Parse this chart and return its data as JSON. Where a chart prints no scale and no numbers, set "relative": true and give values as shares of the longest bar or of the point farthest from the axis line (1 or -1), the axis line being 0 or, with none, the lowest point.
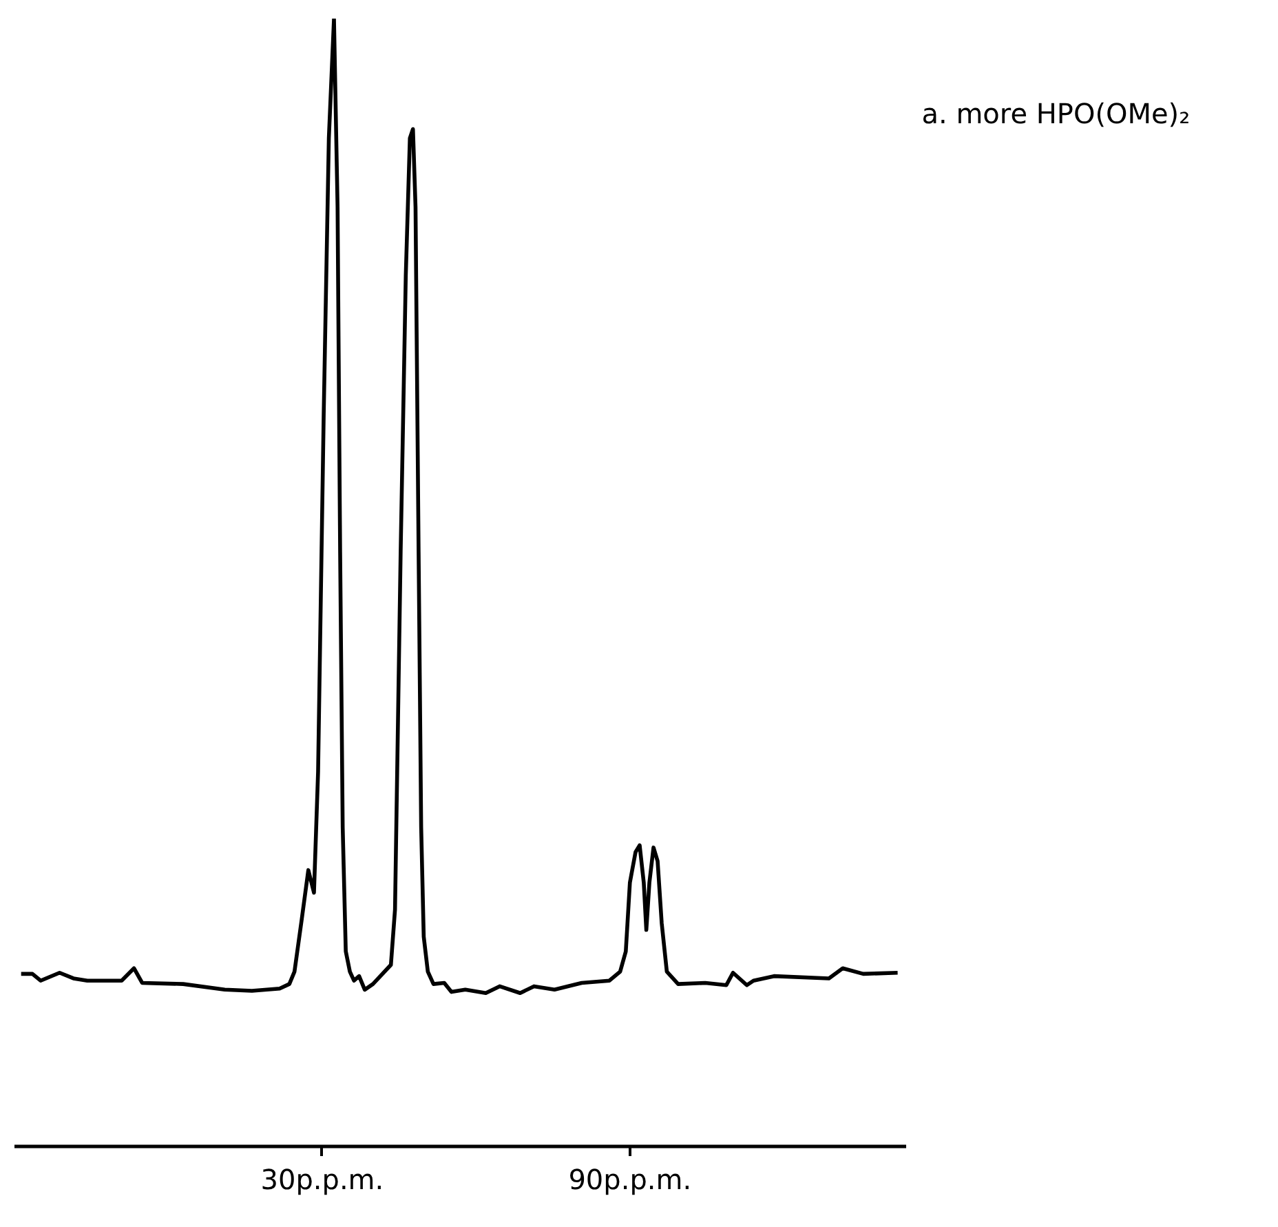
{
  "chart_data": {
    "type": "line",
    "relative": true,
    "xlim": [
      -30,
      144
    ],
    "xticks": [
      {
        "value": 30,
        "label": "30p.p.m."
      },
      {
        "value": 90,
        "label": "90p.p.m."
      }
    ],
    "annotations": [
      "a. more HPO(OMe)₂"
    ],
    "line_style": "solid",
    "series": [
      {
        "color": "#000000",
        "x": [
          -28.7,
          -26.5,
          -24.9,
          -21.2,
          -18.5,
          -15.8,
          -9.1,
          -6.7,
          -5.1,
          2.9,
          11.0,
          16.3,
          21.7,
          23.6,
          24.6,
          26.0,
          27.3,
          28.4,
          29.2,
          30.3,
          31.3,
          32.3,
          33.0,
          33.5,
          34.0,
          34.6,
          35.4,
          36.2,
          37.2,
          38.3,
          39.9,
          43.4,
          44.2,
          45.3,
          46.3,
          47.1,
          47.7,
          48.2,
          48.8,
          49.3,
          49.8,
          50.6,
          51.7,
          53.8,
          55.2,
          57.9,
          61.9,
          64.6,
          68.6,
          71.3,
          75.3,
          80.6,
          86.0,
          88.1,
          89.2,
          90.0,
          91.1,
          91.9,
          92.7,
          93.2,
          93.8,
          94.6,
          95.4,
          96.2,
          97.2,
          99.4,
          104.7,
          108.8,
          110.1,
          112.8,
          114.1,
          118.1,
          128.8,
          131.5,
          135.5,
          142.2
        ],
        "values": [
          0.153,
          0.153,
          0.147,
          0.154,
          0.149,
          0.147,
          0.147,
          0.158,
          0.145,
          0.144,
          0.139,
          0.138,
          0.14,
          0.144,
          0.155,
          0.201,
          0.245,
          0.225,
          0.332,
          0.65,
          0.894,
          1,
          0.833,
          0.527,
          0.283,
          0.173,
          0.155,
          0.147,
          0.151,
          0.139,
          0.144,
          0.161,
          0.21,
          0.527,
          0.772,
          0.894,
          0.902,
          0.833,
          0.527,
          0.283,
          0.186,
          0.155,
          0.144,
          0.145,
          0.137,
          0.139,
          0.136,
          0.142,
          0.136,
          0.142,
          0.139,
          0.145,
          0.147,
          0.155,
          0.173,
          0.234,
          0.261,
          0.267,
          0.234,
          0.192,
          0.234,
          0.265,
          0.253,
          0.198,
          0.155,
          0.144,
          0.145,
          0.143,
          0.154,
          0.143,
          0.147,
          0.151,
          0.149,
          0.158,
          0.153,
          0.154
        ]
      }
    ]
  }
}
